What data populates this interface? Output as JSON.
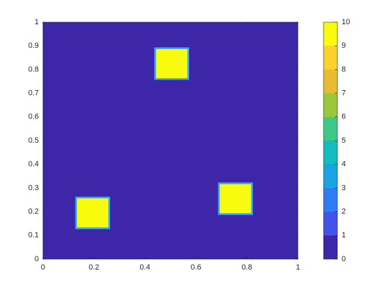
{
  "chart_data": {
    "type": "image",
    "xlim": [
      0,
      1
    ],
    "xticks": [
      0,
      0.2,
      0.4,
      0.6,
      0.8,
      1
    ],
    "ylim": [
      0,
      1
    ],
    "yticks": [
      0,
      0.1,
      0.2,
      0.3,
      0.4,
      0.5,
      0.6,
      0.7,
      0.8,
      0.9,
      1
    ],
    "background": 0,
    "squares": [
      {
        "x": [
          0.13,
          0.26
        ],
        "y": [
          0.13,
          0.26
        ],
        "value": 10
      },
      {
        "x": [
          0.44,
          0.57
        ],
        "y": [
          0.76,
          0.89
        ],
        "value": 10
      },
      {
        "x": [
          0.69,
          0.82
        ],
        "y": [
          0.19,
          0.32
        ],
        "value": 10
      }
    ],
    "clim": [
      0,
      10
    ],
    "cticks": [
      0,
      1,
      2,
      3,
      4,
      5,
      6,
      7,
      8,
      9,
      10
    ],
    "colormap": [
      "#3e26a8",
      "#4353ea",
      "#2d7df7",
      "#1aa3e2",
      "#12bcc0",
      "#3fc987",
      "#9bc83b",
      "#e8bb32",
      "#fbd12b",
      "#f9fb0e"
    ],
    "edge_color": "#3aa6f0"
  }
}
